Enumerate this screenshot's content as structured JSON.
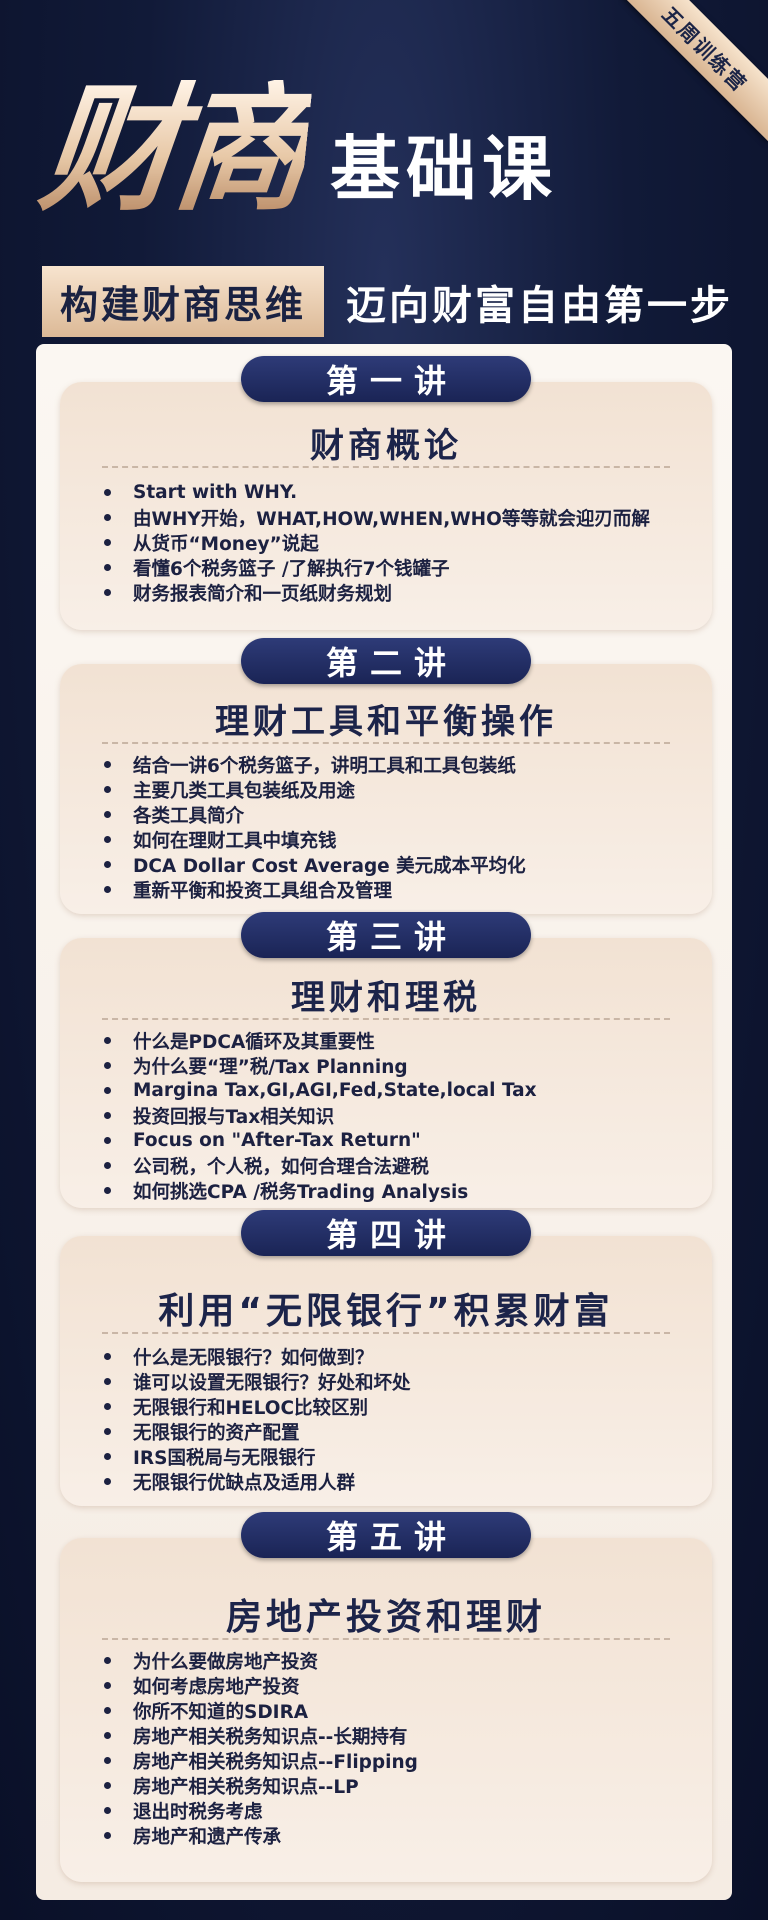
{
  "ribbon": "五周训练营",
  "hero": {
    "big": "财商",
    "small": "基础课"
  },
  "subtitle": {
    "left": "构建财商思维",
    "right": "迈向财富自由第一步"
  },
  "lectures": [
    {
      "label": "第一讲",
      "title": "财商概论",
      "items": [
        "Start with WHY.",
        "由WHY开始，WHAT,HOW,WHEN,WHO等等就会迎刃而解",
        "从货币“Money”说起",
        "看懂6个税务篮子 /了解执行7个钱罐子",
        "财务报表简介和一页纸财务规划"
      ]
    },
    {
      "label": "第二讲",
      "title": "理财工具和平衡操作",
      "items": [
        "结合一讲6个税务篮子，讲明工具和工具包装纸",
        "主要几类工具包装纸及用途",
        "各类工具简介",
        "如何在理财工具中填充钱",
        "DCA Dollar Cost Average 美元成本平均化",
        "重新平衡和投资工具组合及管理"
      ]
    },
    {
      "label": "第三讲",
      "title": "理财和理税",
      "items": [
        "什么是PDCA循环及其重要性",
        "为什么要“理”税/Tax Planning",
        "Margina  Tax,GI,AGI,Fed,State,local  Tax",
        "投资回报与Tax相关知识",
        "Focus on \"After-Tax Return\"",
        "公司税，个人税，如何合理合法避税",
        "如何挑选CPA  /税务Trading Analysis"
      ]
    },
    {
      "label": "第四讲",
      "title": "利用“无限银行”积累财富",
      "items": [
        "什么是无限银行？如何做到？",
        "谁可以设置无限银行？好处和坏处",
        "无限银行和HELOC比较区别",
        "无限银行的资产配置",
        "IRS国税局与无限银行",
        "无限银行优缺点及适用人群"
      ]
    },
    {
      "label": "第五讲",
      "title": "房地产投资和理财",
      "items": [
        "为什么要做房地产投资",
        "如何考虑房地产投资",
        "你所不知道的SDIRA",
        "房地产相关税务知识点--长期持有",
        "房地产相关税务知识点--Flipping",
        "房地产相关税务知识点--LP",
        "退出时税务考虑",
        "房地产和遗产传承"
      ]
    }
  ]
}
